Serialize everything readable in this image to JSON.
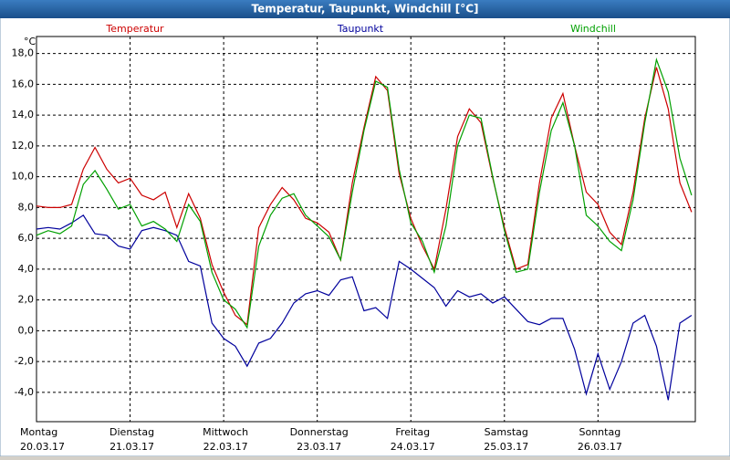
{
  "chart_data": {
    "type": "line",
    "title": "Temperatur, Taupunkt, Windchill [°C]",
    "y_unit": "°C",
    "x": [
      0,
      0.125,
      0.25,
      0.375,
      0.5,
      0.625,
      0.75,
      0.875,
      1,
      1.125,
      1.25,
      1.375,
      1.5,
      1.625,
      1.75,
      1.875,
      2,
      2.125,
      2.25,
      2.375,
      2.5,
      2.625,
      2.75,
      2.875,
      3,
      3.125,
      3.25,
      3.375,
      3.5,
      3.625,
      3.75,
      3.875,
      4,
      4.125,
      4.25,
      4.375,
      4.5,
      4.625,
      4.75,
      4.875,
      5,
      5.125,
      5.25,
      5.375,
      5.5,
      5.625,
      5.75,
      5.875,
      6,
      6.125,
      6.25,
      6.375,
      6.5,
      6.625,
      6.75,
      6.875,
      7
    ],
    "series": [
      {
        "name": "Temperatur",
        "color": "#cc0000",
        "values": [
          8.1,
          8.0,
          8.0,
          8.2,
          10.5,
          11.9,
          10.5,
          9.6,
          9.9,
          8.8,
          8.5,
          9.0,
          6.7,
          8.9,
          7.3,
          4.3,
          2.5,
          1.0,
          0.4,
          6.7,
          8.2,
          9.3,
          8.5,
          7.3,
          7.0,
          6.4,
          4.6,
          9.6,
          13.2,
          16.5,
          15.6,
          10.2,
          7.3,
          5.5,
          4.0,
          7.9,
          12.6,
          14.4,
          13.5,
          9.9,
          6.7,
          4.0,
          4.3,
          9.6,
          13.8,
          15.4,
          12.0,
          9.0,
          8.2,
          6.4,
          5.6,
          9.0,
          13.8,
          17.1,
          14.4,
          9.6,
          7.7
        ]
      },
      {
        "name": "Taupunkt",
        "color": "#00009c",
        "values": [
          6.6,
          6.7,
          6.6,
          7.0,
          7.5,
          6.3,
          6.2,
          5.5,
          5.3,
          6.5,
          6.7,
          6.5,
          6.2,
          4.5,
          4.2,
          0.5,
          -0.5,
          -1.0,
          -2.3,
          -0.8,
          -0.5,
          0.5,
          1.8,
          2.4,
          2.6,
          2.3,
          3.3,
          3.5,
          1.3,
          1.5,
          0.8,
          4.5,
          4.0,
          3.4,
          2.8,
          1.6,
          2.6,
          2.2,
          2.4,
          1.8,
          2.2,
          1.4,
          0.6,
          0.4,
          0.8,
          0.8,
          -1.2,
          -4.1,
          -1.5,
          -3.8,
          -2.0,
          0.5,
          1.0,
          -1.0,
          -4.5,
          0.5,
          1.0
        ]
      },
      {
        "name": "Windchill",
        "color": "#00a000",
        "values": [
          6.2,
          6.5,
          6.3,
          6.8,
          9.5,
          10.4,
          9.2,
          7.9,
          8.2,
          6.8,
          7.1,
          6.6,
          5.8,
          8.2,
          7.1,
          3.8,
          2.0,
          1.4,
          0.2,
          5.5,
          7.5,
          8.6,
          8.9,
          7.5,
          6.8,
          6.1,
          4.6,
          9.0,
          13.0,
          16.2,
          15.8,
          10.5,
          7.0,
          5.8,
          3.8,
          6.8,
          12.0,
          14.0,
          13.8,
          10.0,
          6.5,
          3.8,
          4.0,
          9.0,
          13.0,
          14.8,
          12.0,
          7.5,
          6.8,
          5.8,
          5.2,
          8.5,
          13.5,
          17.6,
          15.5,
          11.2,
          8.8
        ]
      }
    ],
    "xlim": [
      0,
      7.04
    ],
    "xticks": [
      {
        "value": 0,
        "label": "Montag"
      },
      {
        "value": 1,
        "label": "Dienstag"
      },
      {
        "value": 2,
        "label": "Mittwoch"
      },
      {
        "value": 3,
        "label": "Donnerstag"
      },
      {
        "value": 4,
        "label": "Freitag"
      },
      {
        "value": 5,
        "label": "Samstag"
      },
      {
        "value": 6,
        "label": "Sonntag"
      }
    ],
    "xtick_dates": [
      "20.03.17",
      "21.03.17",
      "22.03.17",
      "23.03.17",
      "24.03.17",
      "25.03.17",
      "26.03.17"
    ],
    "ylim": [
      -5.9,
      19.1
    ],
    "yticks": [
      {
        "value": -4,
        "label": "-4,0"
      },
      {
        "value": -2,
        "label": "-2,0"
      },
      {
        "value": 0,
        "label": "0,0"
      },
      {
        "value": 2,
        "label": "2,0"
      },
      {
        "value": 4,
        "label": "4,0"
      },
      {
        "value": 6,
        "label": "6,0"
      },
      {
        "value": 8,
        "label": "8,0"
      },
      {
        "value": 10,
        "label": "10,0"
      },
      {
        "value": 12,
        "label": "12,0"
      },
      {
        "value": 14,
        "label": "14,0"
      },
      {
        "value": 16,
        "label": "16,0"
      },
      {
        "value": 18,
        "label": "18,0"
      }
    ],
    "grid": true
  }
}
